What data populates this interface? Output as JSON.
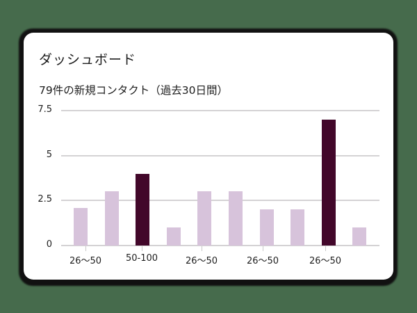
{
  "background_color": "#466b4c",
  "card": {
    "title": "ダッシュボード",
    "subtitle": "79件の新規コンタクト（過去30日間）"
  },
  "colors": {
    "bar_light": "#d7c3db",
    "bar_dark": "#42072a",
    "gridline": "#d4d2d4",
    "text": "#1d1d1d"
  },
  "chart_data": {
    "type": "bar",
    "title": "79件の新規コンタクト（過去30日間）",
    "xlabel": "",
    "ylabel": "",
    "ylim": [
      0,
      7.5
    ],
    "yticks": [
      "0",
      "2.5",
      "5",
      "7.5"
    ],
    "xtick_labels": [
      "26〜50",
      "50-100",
      "26〜50",
      "26〜50",
      "26〜50"
    ],
    "grid": true,
    "legend": null,
    "values": [
      2.1,
      3,
      4,
      1,
      3,
      3,
      2,
      2,
      7,
      1
    ],
    "highlighted": [
      false,
      false,
      true,
      false,
      false,
      false,
      false,
      false,
      true,
      false
    ]
  }
}
